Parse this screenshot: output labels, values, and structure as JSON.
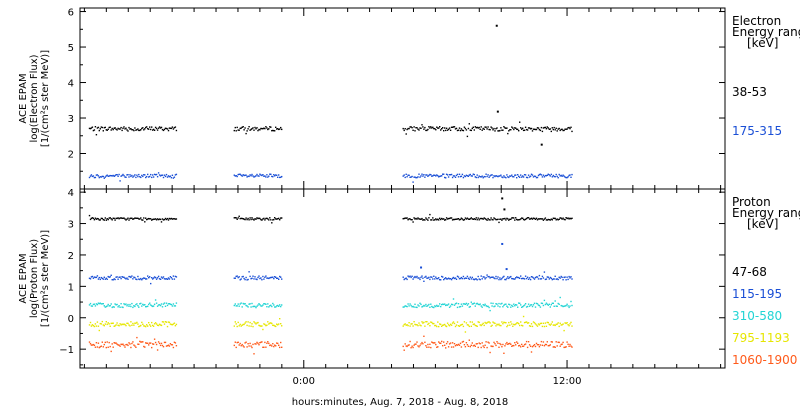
{
  "chart_data": [
    {
      "type": "scatter",
      "panel": "electron",
      "ylabel_lines": [
        "ACE EPAM",
        "log(Electron Flux)",
        "[1/(cm²s ster MeV)]"
      ],
      "ylim": [
        1,
        6.1
      ],
      "yticks": [
        2,
        3,
        4,
        5,
        6
      ],
      "legend_title": [
        "Electron",
        "Energy range",
        "[keV]"
      ],
      "series": [
        {
          "name": "38-53",
          "color": "#000000",
          "base": 2.7,
          "spread": 0.06
        },
        {
          "name": "175-315",
          "color": "#1a4fd6",
          "base": 1.37,
          "spread": 0.05
        }
      ],
      "annotations": [
        {
          "x_hours": 8.75,
          "y": 5.6,
          "color": "#000000"
        },
        {
          "x_hours": 8.8,
          "y": 3.18,
          "color": "#000000"
        },
        {
          "x_hours": 10.8,
          "y": 2.25,
          "color": "#000000"
        }
      ]
    },
    {
      "type": "scatter",
      "panel": "proton",
      "ylabel_lines": [
        "ACE EPAM",
        "log(Proton Flux)",
        "[1/(cm²s ster MeV)]"
      ],
      "ylim": [
        -1.6,
        4.1
      ],
      "yticks": [
        -1,
        0,
        1,
        2,
        3,
        4
      ],
      "legend_title": [
        "Proton",
        "Energy range",
        "[keV]"
      ],
      "series": [
        {
          "name": "47-68",
          "color": "#000000",
          "base": 3.15,
          "spread": 0.04
        },
        {
          "name": "115-195",
          "color": "#1a4fd6",
          "base": 1.27,
          "spread": 0.06
        },
        {
          "name": "310-580",
          "color": "#22d4d4",
          "base": 0.4,
          "spread": 0.07
        },
        {
          "name": "795-1193",
          "color": "#e6e600",
          "base": -0.2,
          "spread": 0.08
        },
        {
          "name": "1060-1900",
          "color": "#ff5a1a",
          "base": -0.85,
          "spread": 0.1
        }
      ],
      "annotations": [
        {
          "x_hours": 9.0,
          "y": 3.8,
          "color": "#000000"
        },
        {
          "x_hours": 9.1,
          "y": 3.45,
          "color": "#000000"
        },
        {
          "x_hours": 9.0,
          "y": 2.35,
          "color": "#1a4fd6"
        },
        {
          "x_hours": 9.2,
          "y": 1.55,
          "color": "#1a4fd6"
        },
        {
          "x_hours": 5.3,
          "y": 1.6,
          "color": "#1a4fd6"
        }
      ]
    }
  ],
  "x_axis": {
    "xlim_hours": [
      -10.2,
      19.2
    ],
    "major_ticks": [
      {
        "hours": 0,
        "label": "0:00"
      },
      {
        "hours": 12,
        "label": "12:00"
      }
    ],
    "minor_step_hours": 1,
    "xlabel": "hours:minutes, Aug.  7, 2018 - Aug.  8, 2018"
  },
  "data_segments_hours": [
    [
      -9.8,
      -5.8
    ],
    [
      -3.2,
      -1.0
    ],
    [
      4.5,
      12.2
    ]
  ]
}
